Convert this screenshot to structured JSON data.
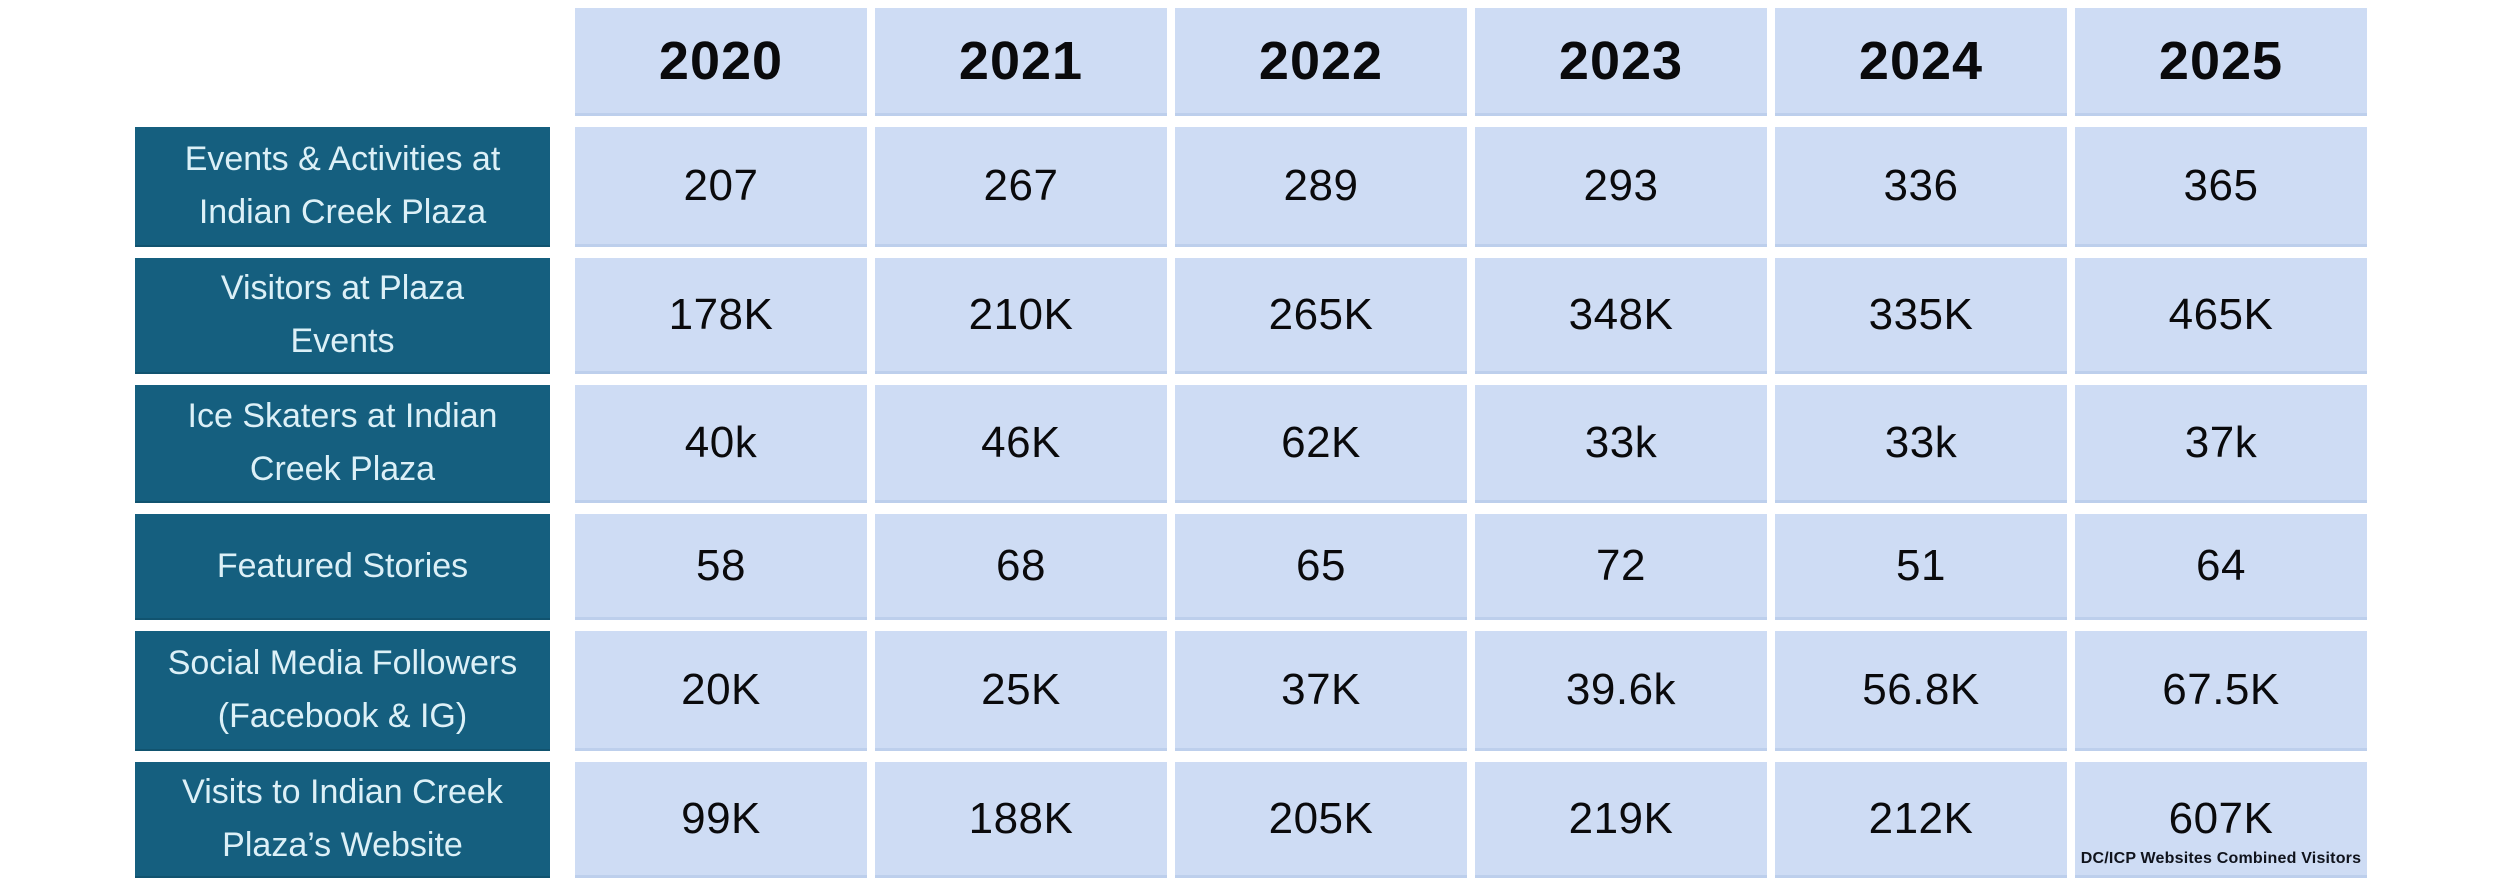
{
  "colors": {
    "page_background": "#ffffff",
    "cell_background": "#cedcf4",
    "row_header_background": "#155f7f",
    "row_header_text": "#dcf0f7",
    "value_text": "#0a0a0c"
  },
  "chart_data": {
    "type": "table",
    "title": "",
    "categories": [
      "2020",
      "2021",
      "2022",
      "2023",
      "2024",
      "2025"
    ],
    "series": [
      {
        "name": "Events & Activities at Indian Creek Plaza",
        "name_lines": [
          "Events & Activities at",
          "Indian Creek Plaza"
        ],
        "values": [
          "207",
          "267",
          "289",
          "293",
          "336",
          "365"
        ]
      },
      {
        "name": "Visitors at Plaza Events",
        "name_lines": [
          "Visitors at Plaza",
          "Events"
        ],
        "values": [
          "178K",
          "210K",
          "265K",
          "348K",
          "335K",
          "465K"
        ]
      },
      {
        "name": "Ice Skaters at Indian Creek Plaza",
        "name_lines": [
          "Ice Skaters at Indian",
          "Creek Plaza"
        ],
        "values": [
          "40k",
          "46K",
          "62K",
          "33k",
          "33k",
          "37k"
        ]
      },
      {
        "name": "Featured Stories",
        "name_lines": [
          "Featured Stories"
        ],
        "values": [
          "58",
          "68",
          "65",
          "72",
          "51",
          "64"
        ]
      },
      {
        "name": "Social Media Followers (Facebook & IG)",
        "name_lines": [
          "Social Media Followers",
          "(Facebook & IG)"
        ],
        "values": [
          "20K",
          "25K",
          "37K",
          "39.6k",
          "56.8K",
          "67.5K"
        ]
      },
      {
        "name": "Visits to Indian Creek Plaza’s Website",
        "name_lines": [
          "Visits to Indian Creek",
          "Plaza’s Website"
        ],
        "values": [
          "99K",
          "188K",
          "205K",
          "219K",
          "212K",
          "607K"
        ],
        "footnote": "DC/ICP Websites Combined Visitors"
      }
    ],
    "layout": {
      "legend": "none",
      "grid": "off",
      "note": "footnote appears inside bottom of last cell (2025 × Website Visits)"
    }
  }
}
